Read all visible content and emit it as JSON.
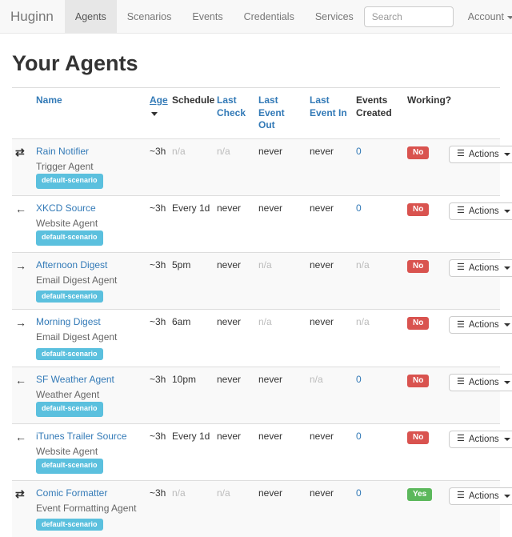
{
  "brand": "Huginn",
  "nav": {
    "items": {
      "agents": "Agents",
      "scenarios": "Scenarios",
      "events": "Events",
      "credentials": "Credentials",
      "services": "Services"
    },
    "search_placeholder": "Search",
    "account_label": "Account"
  },
  "page": {
    "title": "Your Agents"
  },
  "table": {
    "headers": {
      "name": "Name",
      "age": "Age",
      "schedule": "Schedule",
      "last_check": "Last Check",
      "last_event_out": "Last Event Out",
      "last_event_in": "Last Event In",
      "events_created": "Events Created",
      "working": "Working?"
    },
    "actions_label": "Actions",
    "actions_icon": "☰",
    "colors": {
      "link": "#337ab7",
      "scenario_badge": "#5bc0de",
      "status_no": "#d9534f",
      "status_yes": "#5cb85c"
    },
    "rows": [
      {
        "flow": "⇄",
        "name": "Rain Notifier",
        "type": "Trigger Agent",
        "scenario": "default-scenario",
        "age": "~3h",
        "schedule": "n/a",
        "last_check": "n/a",
        "last_event_out": "never",
        "last_event_in": "never",
        "events_created": "0",
        "working": "No"
      },
      {
        "flow": "←",
        "name": "XKCD Source",
        "type": "Website Agent",
        "scenario": "default-scenario",
        "age": "~3h",
        "schedule": "Every 1d",
        "last_check": "never",
        "last_event_out": "never",
        "last_event_in": "never",
        "events_created": "0",
        "working": "No"
      },
      {
        "flow": "→",
        "name": "Afternoon Digest",
        "type": "Email Digest Agent",
        "scenario": "default-scenario",
        "age": "~3h",
        "schedule": "5pm",
        "last_check": "never",
        "last_event_out": "n/a",
        "last_event_in": "never",
        "events_created": "n/a",
        "working": "No"
      },
      {
        "flow": "→",
        "name": "Morning Digest",
        "type": "Email Digest Agent",
        "scenario": "default-scenario",
        "age": "~3h",
        "schedule": "6am",
        "last_check": "never",
        "last_event_out": "n/a",
        "last_event_in": "never",
        "events_created": "n/a",
        "working": "No"
      },
      {
        "flow": "←",
        "name": "SF Weather Agent",
        "type": "Weather Agent",
        "scenario": "default-scenario",
        "age": "~3h",
        "schedule": "10pm",
        "last_check": "never",
        "last_event_out": "never",
        "last_event_in": "n/a",
        "events_created": "0",
        "working": "No"
      },
      {
        "flow": "←",
        "name": "iTunes Trailer Source",
        "type": "Website Agent",
        "scenario": "default-scenario",
        "age": "~3h",
        "schedule": "Every 1d",
        "last_check": "never",
        "last_event_out": "never",
        "last_event_in": "never",
        "events_created": "0",
        "working": "No"
      },
      {
        "flow": "⇄",
        "name": "Comic Formatter",
        "type": "Event Formatting Agent",
        "scenario": "default-scenario",
        "age": "~3h",
        "schedule": "n/a",
        "last_check": "n/a",
        "last_event_out": "never",
        "last_event_in": "never",
        "events_created": "0",
        "working": "Yes"
      }
    ]
  }
}
